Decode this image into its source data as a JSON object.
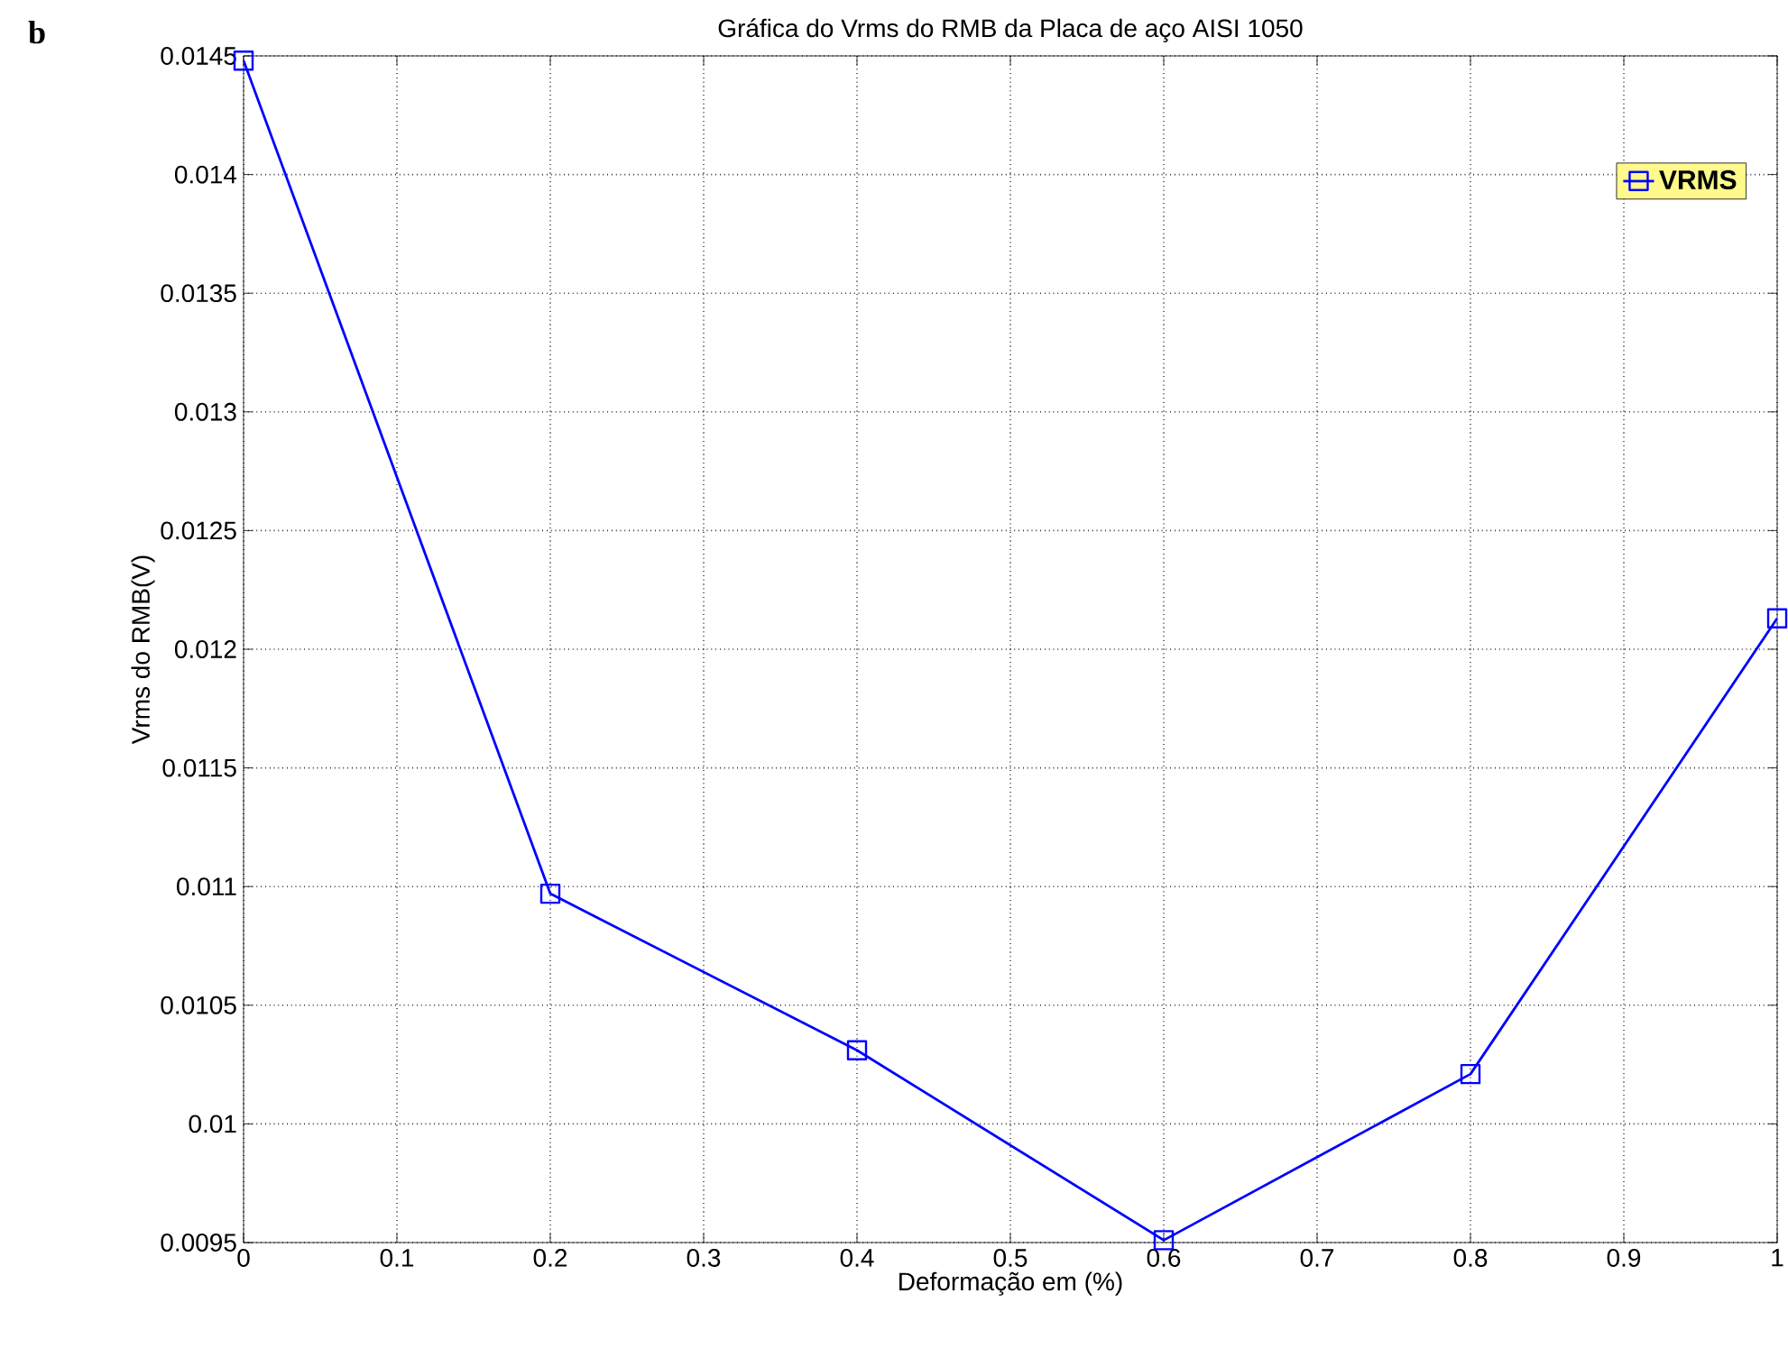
{
  "chart_data": {
    "type": "line",
    "title": "Gráfica do Vrms do RMB da Placa de aço AISI 1050",
    "xlabel": "Deformação em (%)",
    "ylabel": "Vrms do RMB(V)",
    "annotations": [
      "b"
    ],
    "x": [
      0,
      0.2,
      0.4,
      0.6,
      0.8,
      1
    ],
    "series": [
      {
        "name": "VRMS",
        "color": "#0000ff",
        "values": [
          0.01448,
          0.01097,
          0.01031,
          0.00951,
          0.01021,
          0.01213
        ]
      }
    ],
    "xlim": [
      0,
      1
    ],
    "ylim": [
      0.0095,
      0.0145
    ],
    "xticks": [
      0,
      0.1,
      0.2,
      0.3,
      0.4,
      0.5,
      0.6,
      0.7,
      0.8,
      0.9,
      1
    ],
    "yticks": [
      0.0095,
      0.01,
      0.0105,
      0.011,
      0.0115,
      0.012,
      0.0125,
      0.013,
      0.0135,
      0.014,
      0.0145
    ],
    "grid": true,
    "legend": "top right",
    "marker": "square",
    "line_style": "solid"
  }
}
